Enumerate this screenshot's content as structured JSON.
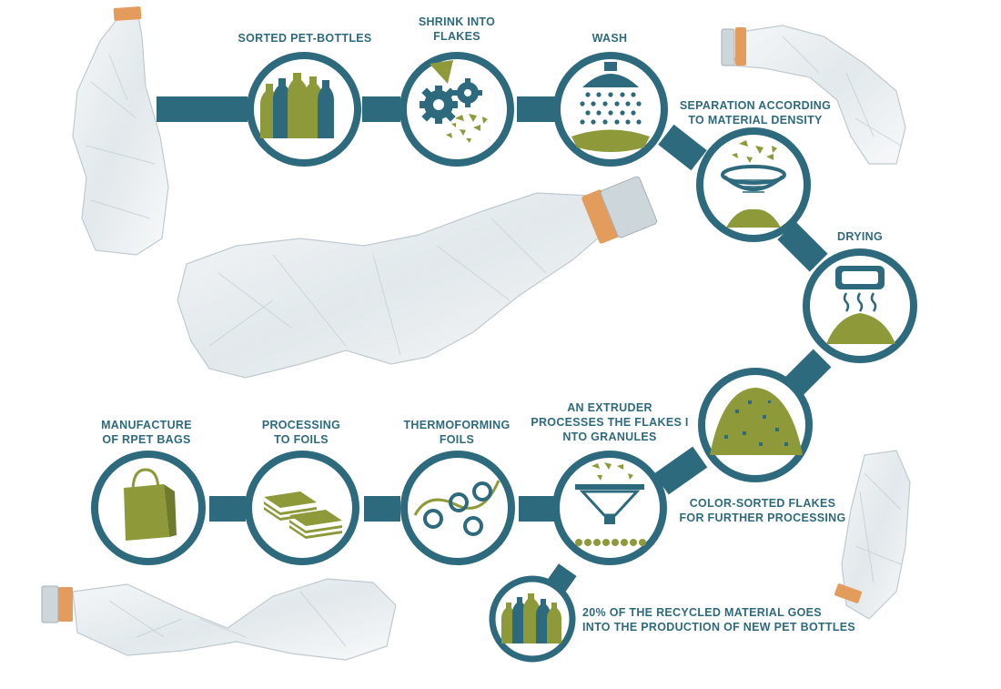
{
  "colors": {
    "teal": "#2e6a7e",
    "olive": "#8e9a3a",
    "orange_cap": "#e0924a",
    "background": "#ffffff"
  },
  "steps": [
    {
      "id": "sorted",
      "lines": [
        "SORTED PET-BOTTLES"
      ],
      "icon": "bottles-icon"
    },
    {
      "id": "shrink",
      "lines": [
        "SHRINK INTO",
        "FLAKES"
      ],
      "icon": "gears-icon"
    },
    {
      "id": "wash",
      "lines": [
        "WASH"
      ],
      "icon": "shower-icon"
    },
    {
      "id": "separation",
      "lines": [
        "SEPARATION ACCORDING",
        "TO MATERIAL DENSITY"
      ],
      "icon": "sieve-icon"
    },
    {
      "id": "drying",
      "lines": [
        "DRYING"
      ],
      "icon": "dryer-icon"
    },
    {
      "id": "colorsorted",
      "lines": [
        "COLOR-SORTED FLAKES",
        "FOR FURTHER PROCESSING"
      ],
      "icon": "flake-pile-icon"
    },
    {
      "id": "extruder",
      "lines": [
        "AN EXTRUDER",
        "PROCESSES THE FLAKES I",
        "NTO GRANULES"
      ],
      "icon": "funnel-icon"
    },
    {
      "id": "thermo",
      "lines": [
        "THERMOFORMING",
        "FOILS"
      ],
      "icon": "rollers-icon"
    },
    {
      "id": "foils",
      "lines": [
        "PROCESSING",
        "TO FOILS"
      ],
      "icon": "foil-stack-icon"
    },
    {
      "id": "bags",
      "lines": [
        "MANUFACTURE",
        "OF RPET BAGS"
      ],
      "icon": "shopping-bag-icon"
    },
    {
      "id": "newbottles",
      "lines": [
        "20% OF THE RECYCLED MATERIAL GOES",
        "INTO THE PRODUCTION OF NEW PET BOTTLES"
      ],
      "icon": "bottles-icon"
    }
  ],
  "decorations": [
    "crushed-bottle-icon",
    "crushed-bottle-icon",
    "crushed-bottle-icon",
    "crushed-bottle-icon",
    "crushed-bottle-icon"
  ]
}
